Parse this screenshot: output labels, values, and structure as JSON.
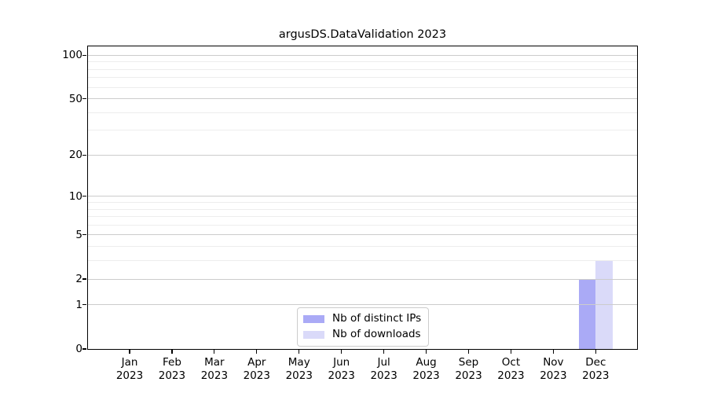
{
  "title": "argusDS.DataValidation 2023",
  "chart_data": {
    "type": "bar",
    "title": "argusDS.DataValidation 2023",
    "y_scale": "log1p (symlog-like: linear 0-1, logarithmic above)",
    "categories": [
      [
        "Jan",
        "2023"
      ],
      [
        "Feb",
        "2023"
      ],
      [
        "Mar",
        "2023"
      ],
      [
        "Apr",
        "2023"
      ],
      [
        "May",
        "2023"
      ],
      [
        "Jun",
        "2023"
      ],
      [
        "Jul",
        "2023"
      ],
      [
        "Aug",
        "2023"
      ],
      [
        "Sep",
        "2023"
      ],
      [
        "Oct",
        "2023"
      ],
      [
        "Nov",
        "2023"
      ],
      [
        "Dec",
        "2023"
      ]
    ],
    "series": [
      {
        "name": "Nb of distinct IPs",
        "color": "#aaaaf6",
        "values": [
          0,
          0,
          0,
          0,
          0,
          0,
          0,
          0,
          0,
          0,
          0,
          2
        ]
      },
      {
        "name": "Nb of downloads",
        "color": "#dadaf9",
        "values": [
          0,
          0,
          0,
          0,
          0,
          0,
          0,
          0,
          0,
          0,
          0,
          3
        ]
      }
    ],
    "y_axis": {
      "major_ticks": [
        0,
        1,
        2,
        5,
        10,
        20,
        50,
        100
      ],
      "minor_ticks": [
        3,
        4,
        6,
        7,
        8,
        9,
        30,
        40,
        60,
        70,
        80,
        90
      ],
      "range": [
        0,
        115
      ]
    },
    "xlabel": "",
    "ylabel": "",
    "grid": "horizontal major+minor, drawn above bars",
    "legend_position": "lower center"
  },
  "colors": {
    "background": "#ffffff",
    "bar_distinct_ips": "#aaaaf6",
    "bar_downloads": "#dadaf9",
    "grid_major": "#cccccc",
    "grid_minor": "#ededed",
    "axis": "#000000",
    "legend_border": "#cccccc",
    "text": "#000000"
  }
}
